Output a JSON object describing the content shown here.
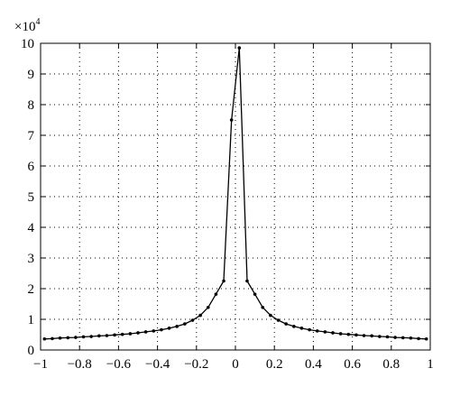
{
  "chart_data": {
    "type": "line",
    "title": "",
    "xlabel": "",
    "ylabel": "",
    "y_scale_factor": "×10",
    "y_scale_exponent": "4",
    "xlim": [
      -1,
      1
    ],
    "ylim": [
      0,
      10
    ],
    "grid": true,
    "grid_style": "dotted",
    "x_ticks": [
      "−1",
      "−0.8",
      "−0.6",
      "−0.4",
      "−0.2",
      "0",
      "0.2",
      "0.4",
      "0.6",
      "0.8",
      "1"
    ],
    "y_ticks": [
      "0",
      "1",
      "2",
      "3",
      "4",
      "5",
      "6",
      "7",
      "8",
      "9",
      "10"
    ],
    "series": [
      {
        "color": "#000000",
        "marker": "dot",
        "x": [
          -0.98,
          -0.94,
          -0.9,
          -0.86,
          -0.82,
          -0.78,
          -0.74,
          -0.7,
          -0.66,
          -0.62,
          -0.58,
          -0.54,
          -0.5,
          -0.46,
          -0.42,
          -0.38,
          -0.34,
          -0.3,
          -0.26,
          -0.22,
          -0.18,
          -0.14,
          -0.1,
          -0.06,
          -0.02,
          0.02,
          0.06,
          0.1,
          0.14,
          0.18,
          0.22,
          0.26,
          0.3,
          0.34,
          0.38,
          0.42,
          0.46,
          0.5,
          0.54,
          0.58,
          0.62,
          0.66,
          0.7,
          0.74,
          0.78,
          0.82,
          0.86,
          0.9,
          0.94,
          0.98
        ],
        "y": [
          0.36,
          0.37,
          0.39,
          0.4,
          0.41,
          0.43,
          0.44,
          0.46,
          0.47,
          0.49,
          0.51,
          0.53,
          0.56,
          0.59,
          0.62,
          0.66,
          0.71,
          0.77,
          0.85,
          0.97,
          1.13,
          1.39,
          1.82,
          2.25,
          7.5,
          9.85,
          2.25,
          1.82,
          1.39,
          1.13,
          0.97,
          0.85,
          0.77,
          0.71,
          0.66,
          0.62,
          0.59,
          0.56,
          0.53,
          0.51,
          0.49,
          0.47,
          0.46,
          0.44,
          0.43,
          0.41,
          0.4,
          0.39,
          0.37,
          0.36
        ]
      }
    ]
  }
}
